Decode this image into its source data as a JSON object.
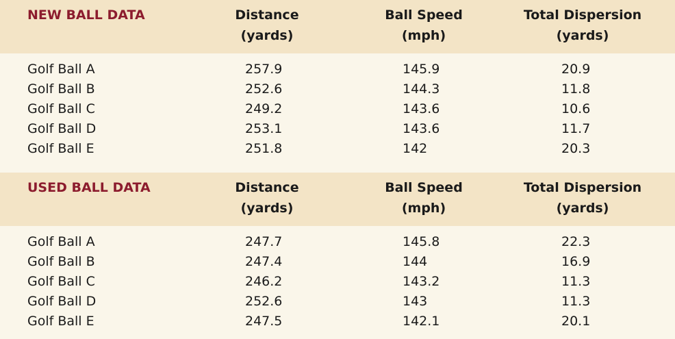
{
  "sections": [
    {
      "title": "NEW BALL DATA",
      "columns": [
        [
          "Distance",
          "(yards)"
        ],
        [
          "Ball Speed",
          "(mph)"
        ],
        [
          "Total Dispersion",
          "(yards)"
        ]
      ],
      "rows": [
        [
          "Golf Ball A",
          "257.9",
          "145.9",
          "20.9"
        ],
        [
          "Golf Ball B",
          "252.6",
          "144.3",
          "11.8"
        ],
        [
          "Golf Ball C",
          "249.2",
          "143.6",
          "10.6"
        ],
        [
          "Golf Ball D",
          "253.1",
          "143.6",
          "11.7"
        ],
        [
          "Golf Ball E",
          "251.8",
          "142",
          "20.3"
        ]
      ]
    },
    {
      "title": "USED BALL DATA",
      "columns": [
        [
          "Distance",
          "(yards)"
        ],
        [
          "Ball Speed",
          "(mph)"
        ],
        [
          "Total Dispersion",
          "(yards)"
        ]
      ],
      "rows": [
        [
          "Golf Ball A",
          "247.7",
          "145.8",
          "22.3"
        ],
        [
          "Golf Ball B",
          "247.4",
          "144",
          "16.9"
        ],
        [
          "Golf Ball C",
          "246.2",
          "143.2",
          "11.3"
        ],
        [
          "Golf Ball D",
          "252.6",
          "143",
          "11.3"
        ],
        [
          "Golf Ball E",
          "247.5",
          "142.1",
          "20.1"
        ]
      ]
    }
  ]
}
